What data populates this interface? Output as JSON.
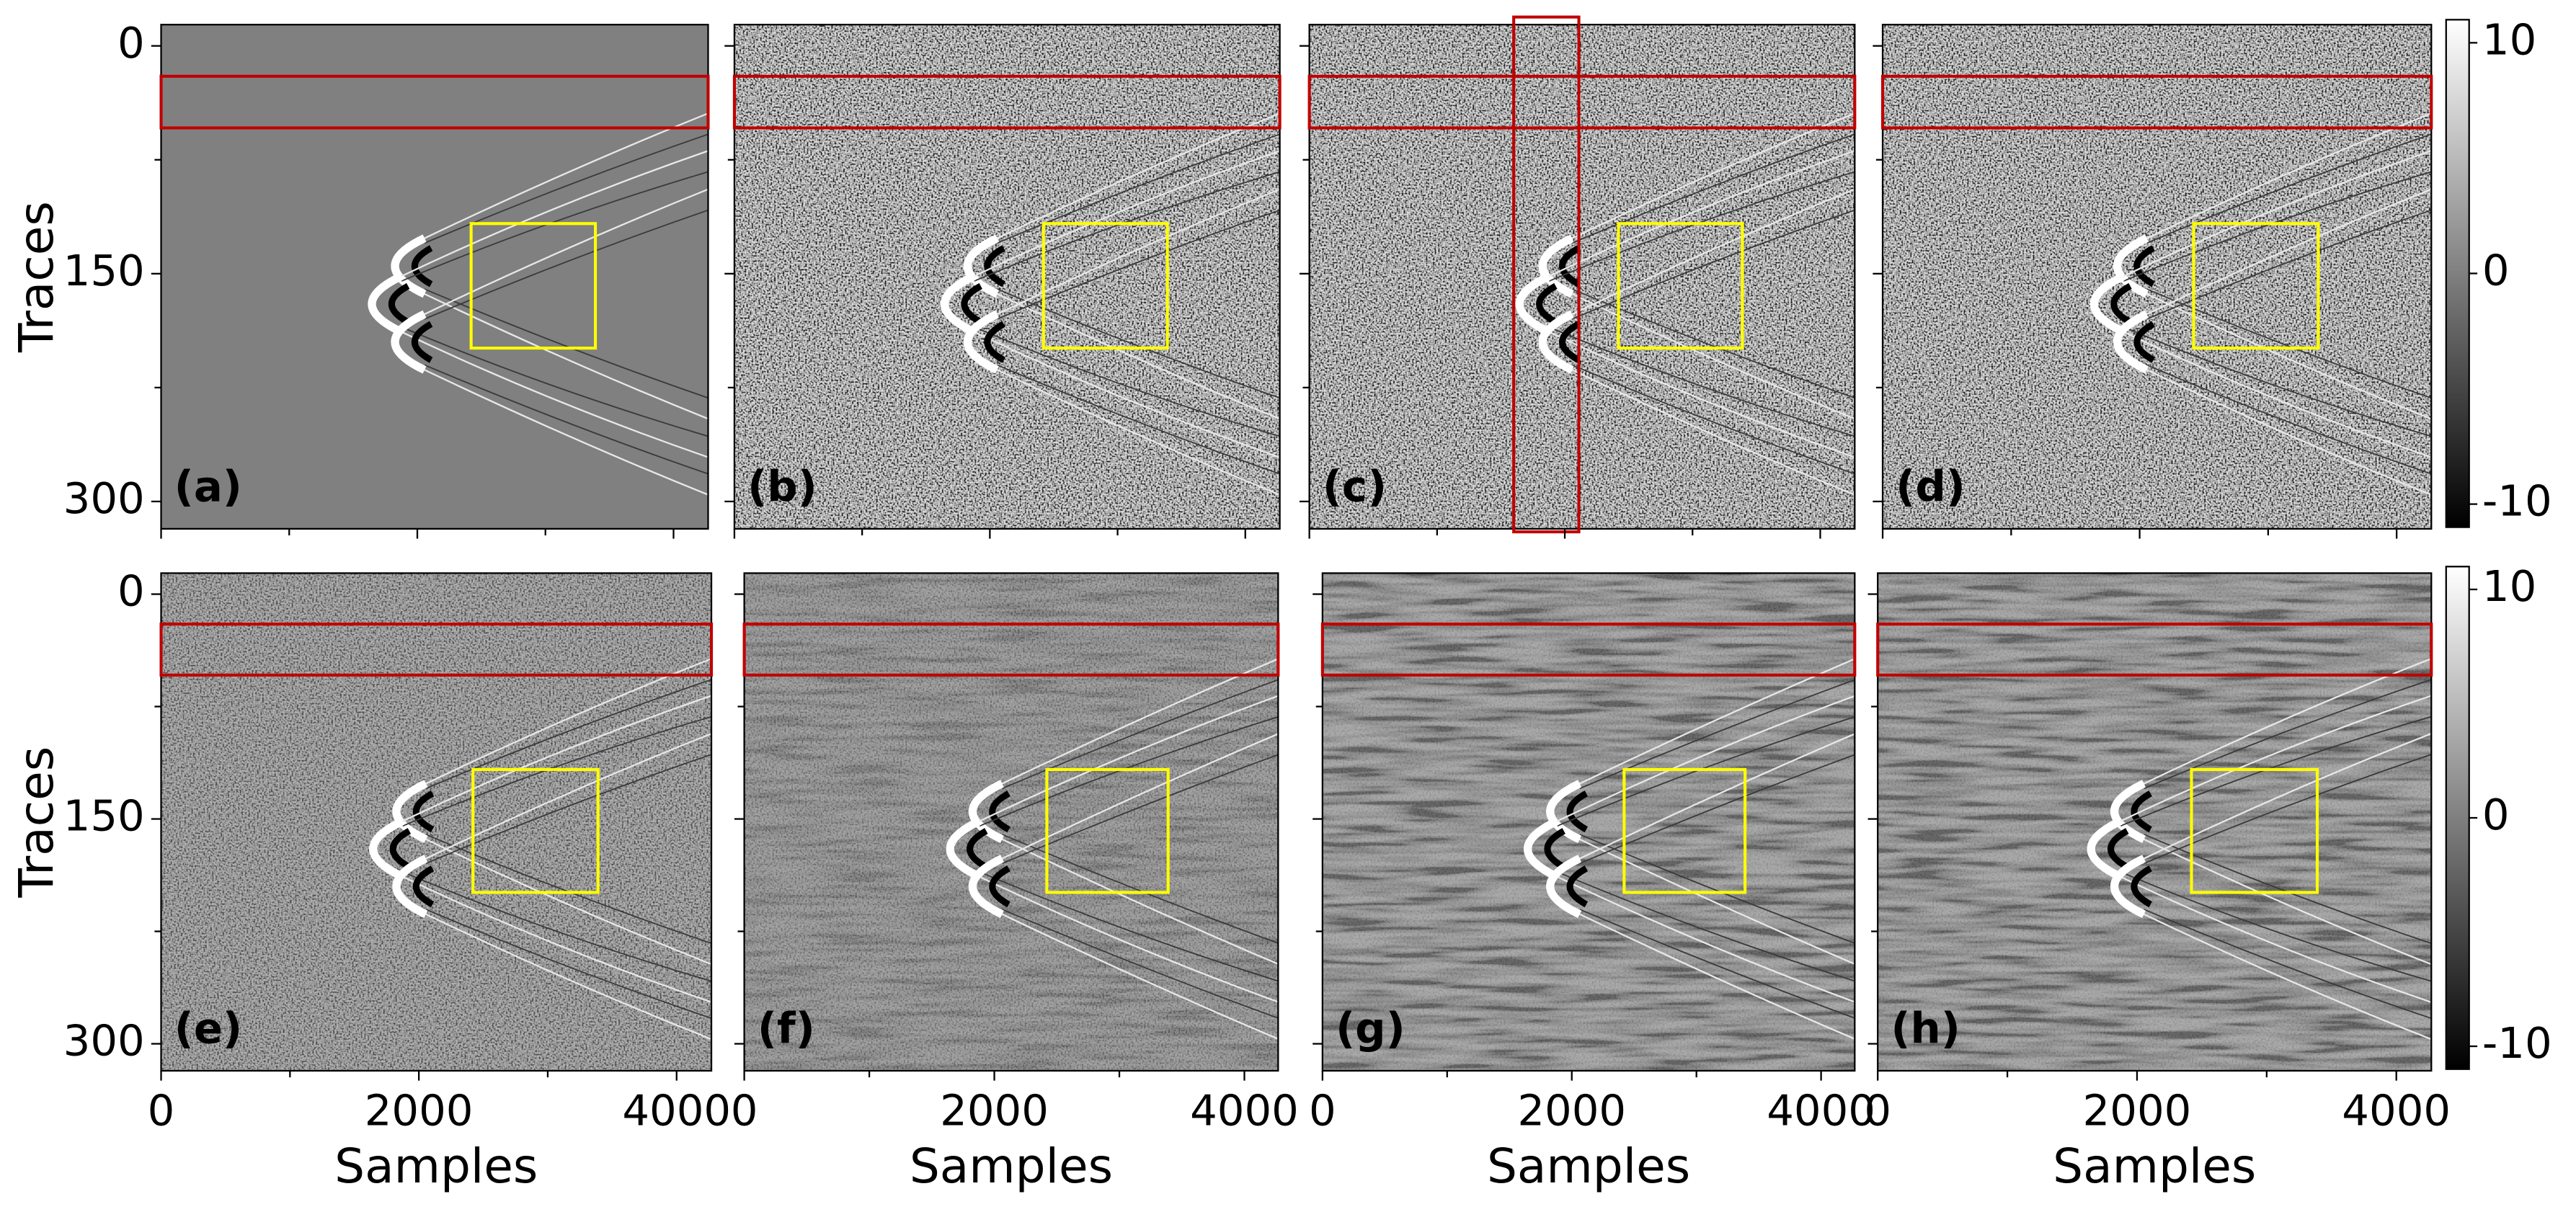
{
  "chart_data": [
    {
      "type": "heatmap",
      "label": "(a)",
      "xlim": [
        0,
        4270
      ],
      "ylim": [
        -14,
        318
      ],
      "xticks": [
        0,
        2000,
        4000
      ],
      "xminor": [
        1000,
        3000
      ],
      "yticks": [
        0,
        150,
        300
      ],
      "yminor": [
        75,
        225
      ],
      "show_xtick_labels": false,
      "show_ytick_labels": true,
      "ylabel": "Traces",
      "events": [
        {
          "x": 1800,
          "y": 145
        },
        {
          "x": 1620,
          "y": 170
        },
        {
          "x": 1800,
          "y": 195
        }
      ],
      "boxes": [
        {
          "color": "#c00000",
          "x": [
            0,
            4270
          ],
          "y": [
            20,
            54
          ]
        },
        {
          "color": "#ffff00",
          "x": [
            2420,
            3390
          ],
          "y": [
            117,
            199
          ]
        }
      ]
    },
    {
      "type": "heatmap",
      "label": "(b)",
      "xlim": [
        0,
        4270
      ],
      "ylim": [
        -14,
        318
      ],
      "xticks": [
        0,
        2000,
        4000
      ],
      "xminor": [
        1000,
        3000
      ],
      "yticks": [
        0,
        150,
        300
      ],
      "yminor": [
        75,
        225
      ],
      "show_xtick_labels": false,
      "show_ytick_labels": false,
      "events": [
        {
          "x": 1800,
          "y": 145
        },
        {
          "x": 1620,
          "y": 170
        },
        {
          "x": 1800,
          "y": 195
        }
      ],
      "boxes": [
        {
          "color": "#c00000",
          "x": [
            0,
            4270
          ],
          "y": [
            20,
            54
          ]
        },
        {
          "color": "#ffff00",
          "x": [
            2420,
            3390
          ],
          "y": [
            117,
            199
          ]
        }
      ]
    },
    {
      "type": "heatmap",
      "label": "(c)",
      "xlim": [
        0,
        4270
      ],
      "ylim": [
        -14,
        318
      ],
      "xticks": [
        0,
        2000,
        4000
      ],
      "xminor": [
        1000,
        3000
      ],
      "yticks": [
        0,
        150,
        300
      ],
      "yminor": [
        75,
        225
      ],
      "show_xtick_labels": false,
      "show_ytick_labels": false,
      "events": [
        {
          "x": 1800,
          "y": 145
        },
        {
          "x": 1620,
          "y": 170
        },
        {
          "x": 1800,
          "y": 195
        }
      ],
      "boxes": [
        {
          "color": "#c00000",
          "x": [
            0,
            4270
          ],
          "y": [
            20,
            54
          ]
        },
        {
          "color": "#c00000",
          "x": [
            1600,
            2110
          ],
          "y": [
            -19,
            320
          ]
        },
        {
          "color": "#ffff00",
          "x": [
            2420,
            3390
          ],
          "y": [
            117,
            199
          ]
        }
      ]
    },
    {
      "type": "heatmap",
      "label": "(d)",
      "xlim": [
        0,
        4270
      ],
      "ylim": [
        -14,
        318
      ],
      "xticks": [
        0,
        2000,
        4000
      ],
      "xminor": [
        1000,
        3000
      ],
      "yticks": [
        0,
        150,
        300
      ],
      "yminor": [
        75,
        225
      ],
      "show_xtick_labels": false,
      "show_ytick_labels": false,
      "events": [
        {
          "x": 1800,
          "y": 145
        },
        {
          "x": 1620,
          "y": 170
        },
        {
          "x": 1800,
          "y": 195
        }
      ],
      "boxes": [
        {
          "color": "#c00000",
          "x": [
            0,
            4270
          ],
          "y": [
            20,
            54
          ]
        },
        {
          "color": "#ffff00",
          "x": [
            2420,
            3390
          ],
          "y": [
            117,
            199
          ]
        }
      ]
    },
    {
      "type": "heatmap",
      "label": "(e)",
      "xlim": [
        0,
        4270
      ],
      "ylim": [
        -14,
        318
      ],
      "xticks": [
        0,
        2000,
        4000
      ],
      "xminor": [
        1000,
        3000
      ],
      "yticks": [
        0,
        150,
        300
      ],
      "yminor": [
        75,
        225
      ],
      "show_xtick_labels": true,
      "show_ytick_labels": true,
      "xlabel": "Samples",
      "ylabel": "Traces",
      "events": [
        {
          "x": 1800,
          "y": 145
        },
        {
          "x": 1620,
          "y": 170
        },
        {
          "x": 1800,
          "y": 195
        }
      ],
      "boxes": [
        {
          "color": "#c00000",
          "x": [
            0,
            4270
          ],
          "y": [
            20,
            54
          ]
        },
        {
          "color": "#ffff00",
          "x": [
            2420,
            3390
          ],
          "y": [
            117,
            199
          ]
        }
      ]
    },
    {
      "type": "heatmap",
      "label": "(f)",
      "xlim": [
        0,
        4270
      ],
      "ylim": [
        -14,
        318
      ],
      "xticks": [
        0,
        2000,
        4000
      ],
      "xminor": [
        1000,
        3000
      ],
      "yticks": [
        0,
        150,
        300
      ],
      "yminor": [
        75,
        225
      ],
      "show_xtick_labels": true,
      "show_ytick_labels": false,
      "xlabel": "Samples",
      "events": [
        {
          "x": 1800,
          "y": 145
        },
        {
          "x": 1620,
          "y": 170
        },
        {
          "x": 1800,
          "y": 195
        }
      ],
      "boxes": [
        {
          "color": "#c00000",
          "x": [
            0,
            4270
          ],
          "y": [
            20,
            54
          ]
        },
        {
          "color": "#ffff00",
          "x": [
            2420,
            3390
          ],
          "y": [
            117,
            199
          ]
        }
      ]
    },
    {
      "type": "heatmap",
      "label": "(g)",
      "xlim": [
        0,
        4270
      ],
      "ylim": [
        -14,
        318
      ],
      "xticks": [
        0,
        2000,
        4000
      ],
      "xminor": [
        1000,
        3000
      ],
      "yticks": [
        0,
        150,
        300
      ],
      "yminor": [
        75,
        225
      ],
      "show_xtick_labels": true,
      "show_ytick_labels": false,
      "xlabel": "Samples",
      "events": [
        {
          "x": 1800,
          "y": 145
        },
        {
          "x": 1620,
          "y": 170
        },
        {
          "x": 1800,
          "y": 195
        }
      ],
      "boxes": [
        {
          "color": "#c00000",
          "x": [
            0,
            4270
          ],
          "y": [
            20,
            54
          ]
        },
        {
          "color": "#ffff00",
          "x": [
            2420,
            3390
          ],
          "y": [
            117,
            199
          ]
        }
      ]
    },
    {
      "type": "heatmap",
      "label": "(h)",
      "xlim": [
        0,
        4270
      ],
      "ylim": [
        -14,
        318
      ],
      "xticks": [
        0,
        2000,
        4000
      ],
      "xminor": [
        1000,
        3000
      ],
      "yticks": [
        0,
        150,
        300
      ],
      "yminor": [
        75,
        225
      ],
      "show_xtick_labels": true,
      "show_ytick_labels": false,
      "xlabel": "Samples",
      "events": [
        {
          "x": 1800,
          "y": 145
        },
        {
          "x": 1620,
          "y": 170
        },
        {
          "x": 1800,
          "y": 195
        }
      ],
      "boxes": [
        {
          "color": "#c00000",
          "x": [
            0,
            4270
          ],
          "y": [
            20,
            54
          ]
        },
        {
          "color": "#ffff00",
          "x": [
            2420,
            3390
          ],
          "y": [
            117,
            199
          ]
        }
      ]
    },
    {
      "type": "colorbar",
      "ylim": [
        -11,
        11
      ],
      "yticks": [
        -10,
        0,
        10
      ]
    },
    {
      "type": "colorbar",
      "ylim": [
        -11,
        11
      ],
      "yticks": [
        -10,
        0,
        10
      ]
    }
  ]
}
